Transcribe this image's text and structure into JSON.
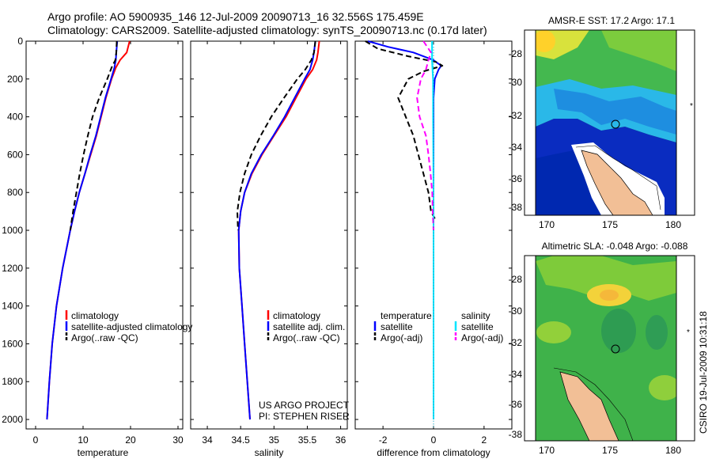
{
  "title": {
    "line1": "Argo profile: AO 5900935_146 12-Jul-2009 20090713_16 32.556S 175.459E",
    "line2": "Climatology: CARS2009. Satellite-adjusted climatology: synTS_20090713.nc (0.17d later)"
  },
  "depth_axis": {
    "ticks": [
      "0",
      "200",
      "400",
      "600",
      "800",
      "1000",
      "1200",
      "1400",
      "1600",
      "1800",
      "2000"
    ],
    "range": [
      0,
      2050
    ]
  },
  "colors": {
    "climatology": "#ff0000",
    "satellite": "#0000ff",
    "argo": "#000000",
    "sat_diff_s": "#00e5ff",
    "argo_diff_s": "#ff00ff"
  },
  "chart_data": [
    {
      "type": "line",
      "name": "temperature-panel",
      "xlabel": "temperature",
      "xlim": [
        -2,
        31
      ],
      "xticks": [
        "0",
        "10",
        "20",
        "30"
      ],
      "legend": [
        "climatology",
        "satellite-adjusted climatology",
        "Argo(..raw -QC)"
      ],
      "series": [
        {
          "name": "climatology",
          "depth": [
            0,
            60,
            100,
            140,
            200,
            300,
            400,
            500,
            600,
            700,
            800,
            900,
            1000,
            1200,
            1400,
            1600,
            1800,
            2000
          ],
          "values": [
            19.8,
            19.2,
            17.8,
            16.9,
            16.0,
            14.8,
            13.8,
            12.8,
            11.6,
            10.4,
            9.2,
            8.2,
            7.3,
            5.7,
            4.4,
            3.5,
            2.9,
            2.4
          ]
        },
        {
          "name": "satellite-adjusted climatology",
          "depth": [
            0,
            60,
            100,
            140,
            200,
            300,
            400,
            500,
            600,
            700,
            800,
            900,
            1000,
            1200,
            1400,
            1600,
            1800,
            2000
          ],
          "values": [
            17.2,
            17.0,
            16.9,
            16.6,
            15.9,
            14.7,
            13.7,
            12.7,
            11.5,
            10.4,
            9.2,
            8.2,
            7.3,
            5.7,
            4.4,
            3.5,
            2.9,
            2.4
          ]
        },
        {
          "name": "Argo(..raw -QC)",
          "depth": [
            0,
            60,
            100,
            140,
            200,
            300,
            400,
            500,
            600,
            700,
            800,
            900,
            1000
          ],
          "values": [
            17.1,
            17.0,
            16.8,
            16.0,
            15.1,
            13.4,
            12.0,
            11.0,
            10.1,
            9.3,
            8.6,
            7.9,
            7.3
          ]
        }
      ]
    },
    {
      "type": "line",
      "name": "salinity-panel",
      "xlabel": "salinity",
      "xlim": [
        33.75,
        36.1
      ],
      "xticks": [
        "34",
        "34.5",
        "35",
        "35.5",
        "36"
      ],
      "legend": [
        "climatology",
        "satellite adj. clim.",
        "Argo(..raw -QC)"
      ],
      "series": [
        {
          "name": "climatology",
          "depth": [
            0,
            60,
            100,
            150,
            200,
            300,
            400,
            500,
            600,
            700,
            800,
            900,
            1000,
            1200,
            1400,
            1600,
            1800,
            2000
          ],
          "values": [
            35.68,
            35.66,
            35.64,
            35.58,
            35.48,
            35.33,
            35.18,
            35.0,
            34.82,
            34.67,
            34.56,
            34.5,
            34.47,
            34.48,
            34.52,
            34.56,
            34.6,
            34.64
          ]
        },
        {
          "name": "satellite adj. clim.",
          "depth": [
            0,
            60,
            100,
            150,
            200,
            300,
            400,
            500,
            600,
            700,
            800,
            900,
            1000,
            1200,
            1400,
            1600,
            1800,
            2000
          ],
          "values": [
            35.62,
            35.6,
            35.58,
            35.54,
            35.46,
            35.31,
            35.16,
            34.99,
            34.81,
            34.66,
            34.56,
            34.5,
            34.47,
            34.48,
            34.52,
            34.56,
            34.6,
            34.64
          ]
        },
        {
          "name": "Argo(..raw -QC)",
          "depth": [
            0,
            60,
            100,
            150,
            200,
            300,
            400,
            500,
            600,
            700,
            800,
            900,
            1000
          ],
          "values": [
            35.62,
            35.6,
            35.56,
            35.47,
            35.35,
            35.15,
            34.96,
            34.8,
            34.66,
            34.56,
            34.49,
            34.45,
            34.46
          ]
        }
      ]
    },
    {
      "type": "line",
      "name": "difference-panel",
      "xlabel": "difference from climatology",
      "xlim": [
        -3.1,
        3.1
      ],
      "xticks": [
        "-2",
        "0",
        "2"
      ],
      "legend_title_t": "temperature",
      "legend_title_s": "salinity",
      "legend_t": [
        "satellite",
        "Argo(-adj)"
      ],
      "legend_s": [
        "satellite",
        "Argo(-adj)"
      ],
      "series": [
        {
          "name": "temperature satellite",
          "depth": [
            0,
            30,
            60,
            100,
            130,
            150,
            200,
            300,
            500,
            800,
            1000,
            1200,
            1500,
            2000
          ],
          "values": [
            -2.6,
            -1.8,
            -0.8,
            0.0,
            0.3,
            0.2,
            0.05,
            0.0,
            0.0,
            0.0,
            0.0,
            0.0,
            0.0,
            0.0
          ]
        },
        {
          "name": "temperature Argo(-adj)",
          "depth": [
            0,
            40,
            80,
            110,
            130,
            160,
            200,
            300,
            400,
            500,
            600,
            700,
            800,
            900,
            950
          ],
          "values": [
            -2.7,
            -2.2,
            -1.0,
            0.1,
            0.35,
            -0.4,
            -1.0,
            -1.4,
            -1.1,
            -0.8,
            -0.6,
            -0.4,
            -0.2,
            -0.1,
            0.1
          ]
        },
        {
          "name": "salinity satellite",
          "depth": [
            0,
            60,
            100,
            150,
            200,
            400,
            800,
            1000,
            1500,
            2000
          ],
          "values": [
            -0.06,
            -0.06,
            -0.06,
            -0.04,
            -0.02,
            -0.02,
            0.0,
            0.0,
            0.0,
            0.0
          ]
        },
        {
          "name": "salinity Argo(-adj)",
          "depth": [
            0,
            60,
            100,
            150,
            200,
            300,
            400,
            500,
            600,
            700,
            800,
            900,
            1000
          ],
          "values": [
            -0.4,
            -0.1,
            -0.2,
            -0.3,
            -0.5,
            -0.65,
            -0.55,
            -0.3,
            -0.2,
            -0.12,
            -0.05,
            -0.03,
            0.0
          ]
        }
      ]
    },
    {
      "type": "heatmap",
      "name": "sst-map",
      "title": "AMSR-E SST: 17.2 Argo: 17.1",
      "xticks": [
        "170",
        "175",
        "180"
      ],
      "yticks": [
        "-28",
        "-30",
        "-32",
        "-34",
        "-36",
        "-38"
      ],
      "float_position": {
        "lon": 175.459,
        "lat": -32.556
      }
    },
    {
      "type": "heatmap",
      "name": "sla-map",
      "title": "Altimetric SLA: -0.048 Argo: -0.088",
      "xticks": [
        "170",
        "175",
        "180"
      ],
      "yticks": [
        "-28",
        "-30",
        "-32",
        "-34",
        "-36",
        "-38"
      ],
      "float_position": {
        "lon": 175.459,
        "lat": -32.556
      }
    }
  ],
  "credits": {
    "project": "US ARGO PROJECT",
    "pi": "PI: STEPHEN RISER",
    "stamp": "CSIRO 19-Jul-2009 10:31:18"
  }
}
